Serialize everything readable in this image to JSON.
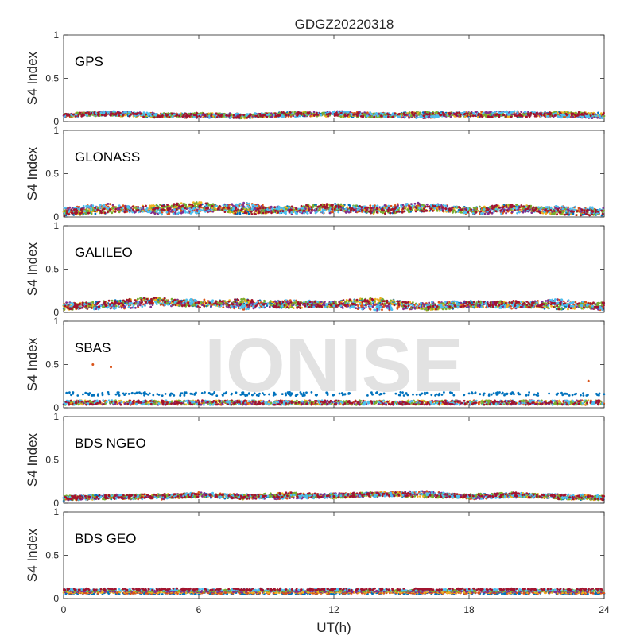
{
  "chart_data": {
    "type": "scatter",
    "title": "GDGZ20220318",
    "xlabel": "UT(h)",
    "ylabel": "S4 Index",
    "xlim": [
      0,
      24
    ],
    "ylim": [
      0,
      1
    ],
    "xticks": [
      "0",
      "6",
      "12",
      "18",
      "24"
    ],
    "yticks": [
      "0",
      "0.5",
      "1"
    ],
    "watermark": "IONISE",
    "series_colors": [
      "#0072BD",
      "#D95319",
      "#EDB120",
      "#7E2F8E",
      "#77AC30",
      "#4DBEEE",
      "#A2142F"
    ],
    "panels": [
      {
        "name": "GPS",
        "approx_range": [
          0.03,
          0.13
        ],
        "series": [
          {
            "x": [
              0,
              2,
              4,
              6,
              8,
              10,
              12,
              14,
              16,
              18,
              20,
              22,
              24
            ],
            "y": [
              0.08,
              0.09,
              0.07,
              0.08,
              0.06,
              0.09,
              0.08,
              0.07,
              0.09,
              0.08,
              0.07,
              0.09,
              0.08
            ]
          },
          {
            "x": [
              0,
              2,
              4,
              6,
              8,
              10,
              12,
              14,
              16,
              18,
              20,
              22,
              24
            ],
            "y": [
              0.07,
              0.1,
              0.08,
              0.06,
              0.08,
              0.07,
              0.1,
              0.08,
              0.06,
              0.09,
              0.1,
              0.07,
              0.06
            ]
          },
          {
            "x": [
              0,
              2,
              4,
              6,
              8,
              10,
              12,
              14,
              16,
              18,
              20,
              22,
              24
            ],
            "y": [
              0.09,
              0.06,
              0.1,
              0.07,
              0.09,
              0.06,
              0.07,
              0.1,
              0.08,
              0.06,
              0.08,
              0.1,
              0.07
            ]
          }
        ]
      },
      {
        "name": "GLONASS",
        "approx_range": [
          0.02,
          0.18
        ],
        "series": [
          {
            "x": [
              0,
              2,
              4,
              6,
              8,
              10,
              12,
              14,
              16,
              18,
              20,
              22,
              24
            ],
            "y": [
              0.05,
              0.08,
              0.1,
              0.14,
              0.06,
              0.09,
              0.12,
              0.07,
              0.1,
              0.08,
              0.11,
              0.06,
              0.05
            ]
          },
          {
            "x": [
              0,
              2,
              4,
              6,
              8,
              10,
              12,
              14,
              16,
              18,
              20,
              22,
              24
            ],
            "y": [
              0.07,
              0.12,
              0.06,
              0.08,
              0.13,
              0.07,
              0.08,
              0.1,
              0.14,
              0.06,
              0.08,
              0.09,
              0.07
            ]
          }
        ]
      },
      {
        "name": "GALILEO",
        "approx_range": [
          0.02,
          0.18
        ],
        "series": [
          {
            "x": [
              0,
              2,
              4,
              6,
              8,
              10,
              12,
              14,
              16,
              18,
              20,
              22,
              24
            ],
            "y": [
              0.06,
              0.1,
              0.14,
              0.09,
              0.12,
              0.08,
              0.1,
              0.14,
              0.06,
              0.09,
              0.1,
              0.07,
              0.08
            ]
          },
          {
            "x": [
              0,
              2,
              4,
              6,
              8,
              10,
              12,
              14,
              16,
              18,
              20,
              22,
              24
            ],
            "y": [
              0.08,
              0.07,
              0.1,
              0.12,
              0.07,
              0.11,
              0.09,
              0.06,
              0.08,
              0.1,
              0.08,
              0.12,
              0.06
            ]
          }
        ]
      },
      {
        "name": "SBAS",
        "approx_range": [
          0.04,
          0.2
        ],
        "series": [
          {
            "x": [
              0,
              2,
              4,
              6,
              8,
              10,
              12,
              14,
              16,
              18,
              20,
              22,
              24
            ],
            "y": [
              0.16,
              0.17,
              0.16,
              0.18,
              0.17,
              0.16,
              0.17,
              0.16,
              0.17,
              0.16,
              0.17,
              0.16,
              0.16
            ]
          },
          {
            "x": [
              0,
              2,
              4,
              6,
              8,
              10,
              12,
              14,
              16,
              18,
              20,
              22,
              24
            ],
            "y": [
              0.08,
              0.08,
              0.09,
              0.08,
              0.08,
              0.09,
              0.08,
              0.08,
              0.09,
              0.08,
              0.08,
              0.09,
              0.08
            ]
          },
          {
            "x": [
              1.3,
              2.1,
              23.3
            ],
            "y": [
              0.5,
              0.47,
              0.31
            ]
          }
        ]
      },
      {
        "name": "BDS NGEO",
        "approx_range": [
          0.03,
          0.14
        ],
        "series": [
          {
            "x": [
              0,
              2,
              4,
              6,
              8,
              10,
              12,
              14,
              16,
              18,
              20,
              22,
              24
            ],
            "y": [
              0.06,
              0.07,
              0.08,
              0.09,
              0.07,
              0.1,
              0.08,
              0.11,
              0.09,
              0.08,
              0.1,
              0.07,
              0.06
            ]
          },
          {
            "x": [
              0,
              2,
              4,
              6,
              8,
              10,
              12,
              14,
              16,
              18,
              20,
              22,
              24
            ],
            "y": [
              0.05,
              0.08,
              0.06,
              0.1,
              0.08,
              0.07,
              0.09,
              0.1,
              0.12,
              0.07,
              0.09,
              0.08,
              0.07
            ]
          }
        ]
      },
      {
        "name": "BDS GEO",
        "approx_range": [
          0.05,
          0.13
        ],
        "series": [
          {
            "x": [
              0,
              2,
              4,
              6,
              8,
              10,
              12,
              14,
              16,
              18,
              20,
              22,
              24
            ],
            "y": [
              0.1,
              0.1,
              0.11,
              0.1,
              0.1,
              0.11,
              0.1,
              0.1,
              0.11,
              0.1,
              0.1,
              0.11,
              0.1
            ]
          },
          {
            "x": [
              0,
              2,
              4,
              6,
              8,
              10,
              12,
              14,
              16,
              18,
              20,
              22,
              24
            ],
            "y": [
              0.08,
              0.08,
              0.08,
              0.08,
              0.08,
              0.08,
              0.08,
              0.08,
              0.08,
              0.08,
              0.08,
              0.08,
              0.08
            ]
          }
        ]
      }
    ]
  }
}
